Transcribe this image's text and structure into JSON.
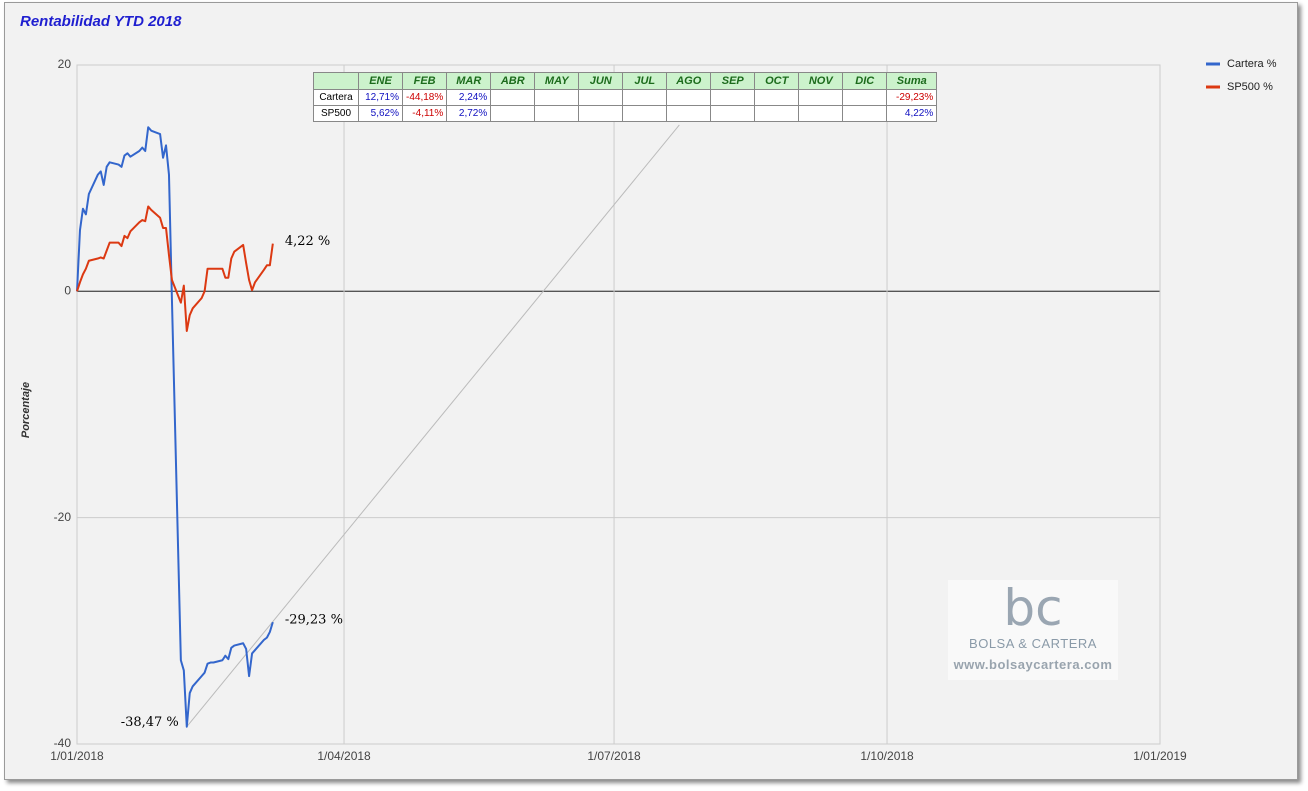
{
  "chart_data": {
    "type": "line",
    "title": "Rentabilidad YTD 2018",
    "y_label": "Porcentaje",
    "x": [
      "2018-01-01",
      "2018-01-02",
      "2018-01-03",
      "2018-01-04",
      "2018-01-05",
      "2018-01-08",
      "2018-01-09",
      "2018-01-10",
      "2018-01-11",
      "2018-01-12",
      "2018-01-15",
      "2018-01-16",
      "2018-01-17",
      "2018-01-18",
      "2018-01-19",
      "2018-01-22",
      "2018-01-23",
      "2018-01-24",
      "2018-01-25",
      "2018-01-26",
      "2018-01-29",
      "2018-01-30",
      "2018-01-31",
      "2018-02-01",
      "2018-02-02",
      "2018-02-05",
      "2018-02-06",
      "2018-02-07",
      "2018-02-08",
      "2018-02-09",
      "2018-02-12",
      "2018-02-13",
      "2018-02-14",
      "2018-02-15",
      "2018-02-16",
      "2018-02-19",
      "2018-02-20",
      "2018-02-21",
      "2018-02-22",
      "2018-02-23",
      "2018-02-26",
      "2018-02-27",
      "2018-02-28",
      "2018-03-01",
      "2018-03-02",
      "2018-03-05",
      "2018-03-06",
      "2018-03-07",
      "2018-03-08"
    ],
    "series": [
      {
        "name": "Cartera %",
        "color": "#3366cc",
        "values": [
          0,
          5.4,
          7.3,
          6.8,
          8.6,
          10.3,
          10.6,
          9.4,
          11.0,
          11.4,
          11.2,
          11.0,
          12.0,
          12.2,
          11.9,
          12.4,
          12.7,
          12.4,
          14.5,
          14.2,
          13.9,
          11.8,
          12.9,
          10.3,
          -0.8,
          -32.6,
          -33.5,
          -38.47,
          -35.5,
          -34.9,
          -34.0,
          -33.7,
          -32.9,
          -32.8,
          -32.8,
          -32.6,
          -32.2,
          -32.5,
          -31.5,
          -31.3,
          -31.1,
          -31.6,
          -34.0,
          -32.0,
          -31.7,
          -30.8,
          -30.6,
          -30.1,
          -29.23
        ],
        "value_labels": [
          null,
          null,
          null,
          null,
          null,
          null,
          null,
          null,
          null,
          null,
          null,
          null,
          null,
          null,
          null,
          null,
          null,
          null,
          null,
          null,
          null,
          null,
          null,
          null,
          null,
          null,
          null,
          "-38,47 %",
          null,
          null,
          null,
          null,
          null,
          null,
          null,
          null,
          null,
          null,
          null,
          null,
          null,
          null,
          null,
          null,
          null,
          null,
          null,
          null,
          "-29,23 %"
        ]
      },
      {
        "name": "SP500 %",
        "color": "#dc3912",
        "values": [
          0,
          0.8,
          1.5,
          2.0,
          2.7,
          2.9,
          3.0,
          2.9,
          3.6,
          4.3,
          4.3,
          4.0,
          4.9,
          4.7,
          5.3,
          6.1,
          6.3,
          6.2,
          7.5,
          7.2,
          6.5,
          5.6,
          5.6,
          3.2,
          1.0,
          -1.0,
          0.5,
          -3.5,
          -2.1,
          -1.5,
          -0.6,
          0.0,
          2.0,
          2.0,
          2.0,
          2.0,
          1.2,
          1.2,
          2.9,
          3.5,
          4.1,
          2.5,
          1.0,
          0.1,
          0.8,
          1.9,
          2.3,
          2.3,
          4.22
        ],
        "value_labels": [
          null,
          null,
          null,
          null,
          null,
          null,
          null,
          null,
          null,
          null,
          null,
          null,
          null,
          null,
          null,
          null,
          null,
          null,
          null,
          null,
          null,
          null,
          null,
          null,
          null,
          null,
          null,
          null,
          null,
          null,
          null,
          null,
          null,
          null,
          null,
          null,
          null,
          null,
          null,
          null,
          null,
          null,
          null,
          null,
          null,
          null,
          null,
          null,
          "4,22 %"
        ]
      }
    ],
    "trendline": {
      "color": "#bbbbbb",
      "x": [
        "2018-02-07",
        "2018-07-23"
      ],
      "values": [
        -38.47,
        14.7
      ]
    },
    "xlim": [
      "2018-01-01",
      "2019-01-01"
    ],
    "xticks": [
      {
        "value": "2018-01-01",
        "label": "1/01/2018"
      },
      {
        "value": "2018-04-01",
        "label": "1/04/2018"
      },
      {
        "value": "2018-07-01",
        "label": "1/07/2018"
      },
      {
        "value": "2018-10-01",
        "label": "1/10/2018"
      },
      {
        "value": "2019-01-01",
        "label": "1/01/2019"
      }
    ],
    "ylim": [
      -40,
      20
    ],
    "yticks": [
      -40,
      -20,
      0,
      20
    ],
    "grid": true,
    "legend": "right"
  },
  "table": {
    "header": [
      null,
      "ENE",
      "FEB",
      "MAR",
      "ABR",
      "MAY",
      "JUN",
      "JUL",
      "AGO",
      "SEP",
      "OCT",
      "NOV",
      "DIC",
      "Suma"
    ],
    "rows": [
      [
        "Cartera",
        "12,71%",
        "-44,18%",
        "2,24%",
        null,
        null,
        null,
        null,
        null,
        null,
        null,
        null,
        null,
        "-29,23%"
      ],
      [
        "SP500",
        "5,62%",
        "-4,11%",
        "2,72%",
        null,
        null,
        null,
        null,
        null,
        null,
        null,
        null,
        null,
        "4,22%"
      ]
    ]
  },
  "watermark": {
    "logo": "bc",
    "name": "BOLSA & CARTERA",
    "url": "www.bolsaycartera.com"
  }
}
